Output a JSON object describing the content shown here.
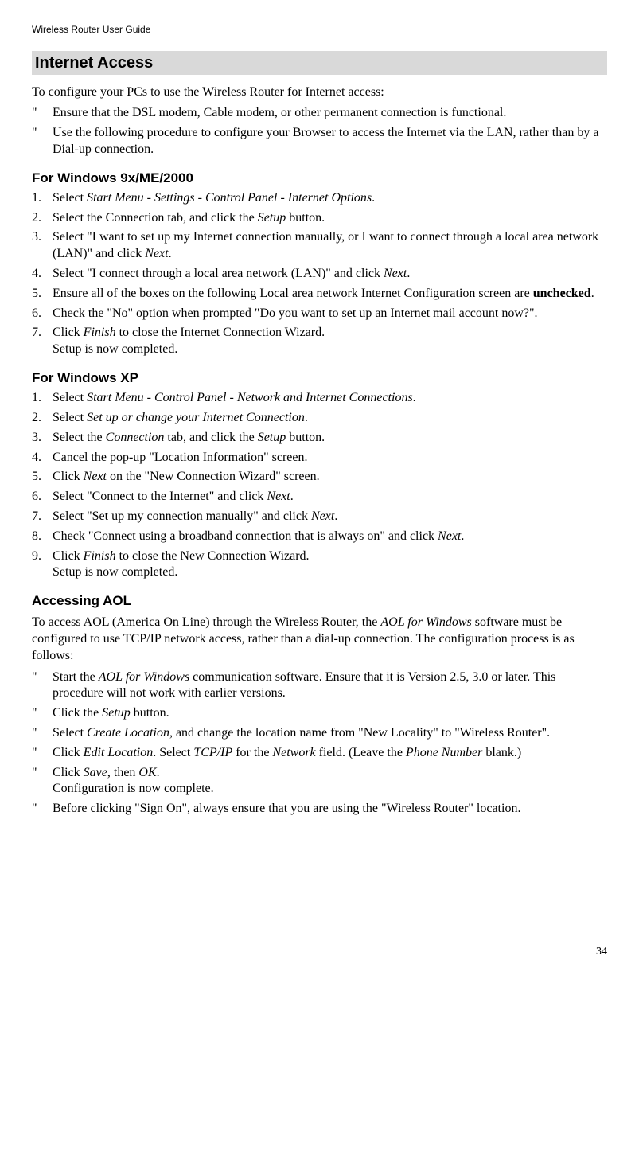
{
  "running_header": "Wireless Router User Guide",
  "section_title": "Internet Access",
  "intro_text": "To configure your PCs to use the Wireless Router for Internet access:",
  "intro_bullets": [
    "Ensure that the DSL modem, Cable modem, or other permanent connection is functional.",
    "Use the following procedure to configure your Browser to access the Internet via the LAN, rather than by a Dial-up connection."
  ],
  "bullet_mark": "\"",
  "win9x": {
    "heading": "For Windows 9x/ME/2000",
    "steps": [
      [
        {
          "t": "Select "
        },
        {
          "t": "Start Menu - Settings - Control Panel - Internet Options",
          "i": true
        },
        {
          "t": "."
        }
      ],
      [
        {
          "t": "Select the Connection tab, and click the "
        },
        {
          "t": "Setup",
          "i": true
        },
        {
          "t": " button."
        }
      ],
      [
        {
          "t": "Select \"I want to set up my Internet connection manually, or I want to connect through a local area network (LAN)\" and click "
        },
        {
          "t": "Next",
          "i": true
        },
        {
          "t": "."
        }
      ],
      [
        {
          "t": "Select \"I connect through a local area network (LAN)\" and click "
        },
        {
          "t": "Next",
          "i": true
        },
        {
          "t": "."
        }
      ],
      [
        {
          "t": "Ensure all of the boxes on the following Local area network Internet Configuration screen are "
        },
        {
          "t": "unchecked",
          "b": true
        },
        {
          "t": "."
        }
      ],
      [
        {
          "t": "Check the \"No\" option when prompted \"Do you want to set up an Internet mail account now?\"."
        }
      ],
      [
        {
          "t": "Click "
        },
        {
          "t": "Finish",
          "i": true
        },
        {
          "t": " to close the Internet Connection Wizard."
        },
        {
          "br": true
        },
        {
          "t": "Setup is now completed."
        }
      ]
    ]
  },
  "winxp": {
    "heading": "For Windows XP",
    "steps": [
      [
        {
          "t": "Select "
        },
        {
          "t": "Start Menu - Control Panel - Network and Internet Connections",
          "i": true
        },
        {
          "t": "."
        }
      ],
      [
        {
          "t": "Select "
        },
        {
          "t": "Set up or change your Internet Connection",
          "i": true
        },
        {
          "t": "."
        }
      ],
      [
        {
          "t": "Select the "
        },
        {
          "t": "Connection",
          "i": true
        },
        {
          "t": " tab, and click the "
        },
        {
          "t": "Setup",
          "i": true
        },
        {
          "t": " button."
        }
      ],
      [
        {
          "t": "Cancel the pop-up \"Location Information\" screen."
        }
      ],
      [
        {
          "t": "Click "
        },
        {
          "t": "Next",
          "i": true
        },
        {
          "t": " on the \"New Connection Wizard\" screen."
        }
      ],
      [
        {
          "t": "Select \"Connect to the Internet\" and click "
        },
        {
          "t": "Next",
          "i": true
        },
        {
          "t": "."
        }
      ],
      [
        {
          "t": "Select \"Set up my connection manually\" and click "
        },
        {
          "t": "Next",
          "i": true
        },
        {
          "t": "."
        }
      ],
      [
        {
          "t": "Check \"Connect using a broadband connection that is always on\" and click "
        },
        {
          "t": "Next",
          "i": true
        },
        {
          "t": "."
        }
      ],
      [
        {
          "t": "Click "
        },
        {
          "t": "Finish",
          "i": true
        },
        {
          "t": " to close the New Connection Wizard."
        },
        {
          "br": true
        },
        {
          "t": "Setup is now completed."
        }
      ]
    ]
  },
  "aol": {
    "heading": "Accessing AOL",
    "intro": [
      {
        "t": "To access AOL (America On Line) through the Wireless Router, the "
      },
      {
        "t": "AOL for Windows",
        "i": true
      },
      {
        "t": " software must be configured to use TCP/IP network access, rather than a dial-up connection. The configuration process is as follows:"
      }
    ],
    "bullets": [
      [
        {
          "t": "Start the "
        },
        {
          "t": "AOL for Windows",
          "i": true
        },
        {
          "t": " communication software. Ensure that it is Version 2.5, 3.0 or later. This procedure will not work with earlier versions."
        }
      ],
      [
        {
          "t": "Click the "
        },
        {
          "t": "Setup",
          "i": true
        },
        {
          "t": " button."
        }
      ],
      [
        {
          "t": "Select "
        },
        {
          "t": "Create Location",
          "i": true
        },
        {
          "t": ", and change the location name from \"New Locality\" to \"Wireless Router\"."
        }
      ],
      [
        {
          "t": "Click "
        },
        {
          "t": "Edit Location",
          "i": true
        },
        {
          "t": ". Select "
        },
        {
          "t": "TCP/IP",
          "i": true
        },
        {
          "t": " for the "
        },
        {
          "t": "Network",
          "i": true
        },
        {
          "t": " field. (Leave the "
        },
        {
          "t": "Phone Number",
          "i": true
        },
        {
          "t": " blank.)"
        }
      ],
      [
        {
          "t": "Click "
        },
        {
          "t": "Save",
          "i": true
        },
        {
          "t": ", then "
        },
        {
          "t": "OK",
          "i": true
        },
        {
          "t": "."
        },
        {
          "br": true
        },
        {
          "t": "Configuration is now complete."
        }
      ],
      [
        {
          "t": "Before clicking \"Sign On\", always ensure that you are using the \"Wireless Router\" location."
        }
      ]
    ]
  },
  "page_number": "34"
}
